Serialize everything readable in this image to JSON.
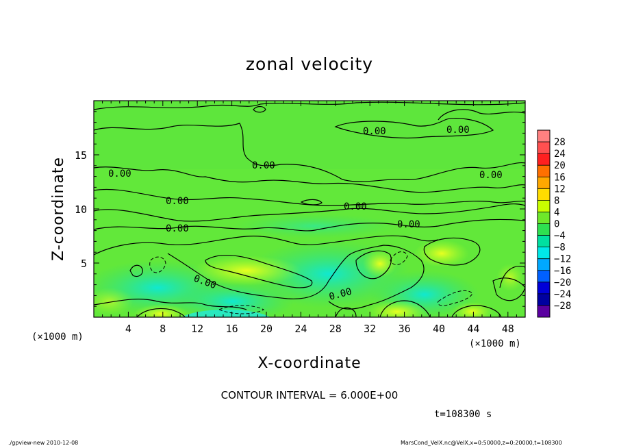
{
  "chart_data": {
    "type": "heatmap",
    "title": "zonal velocity",
    "xlabel": "X-coordinate",
    "ylabel": "Z-coordinate",
    "x_unit": "(×1000 m)",
    "z_unit": "(×1000 m)",
    "xlim": [
      0,
      50
    ],
    "ylim": [
      0,
      20
    ],
    "x_ticks": [
      "4",
      "8",
      "12",
      "16",
      "20",
      "24",
      "28",
      "32",
      "36",
      "40",
      "44",
      "48"
    ],
    "y_ticks": [
      "5",
      "10",
      "15"
    ],
    "colorbar_levels": [
      "28",
      "24",
      "20",
      "16",
      "12",
      "8",
      "4",
      "0",
      "−4",
      "−8",
      "−12",
      "−16",
      "−20",
      "−24",
      "−28"
    ],
    "colorbar_colors": [
      "#ff8080",
      "#ff5050",
      "#ff2020",
      "#ff7000",
      "#ffa800",
      "#ffdd00",
      "#c8ff00",
      "#6ee82a",
      "#2ee050",
      "#00e0a0",
      "#00e8e8",
      "#00a8ff",
      "#0060ff",
      "#0000d8",
      "#0000a0",
      "#5a00a0"
    ],
    "contour_labels": [
      "0.00",
      "0.00",
      "0.00",
      "0.00",
      "0.00",
      "0.00",
      "0.00",
      "0.00",
      "0.00",
      "0.00",
      "0.00"
    ],
    "contour_interval_text": "CONTOUR INTERVAL = 6.000E+00",
    "time_text": "t=108300 s",
    "footer_left": "./gpview-new  2010-12-08",
    "footer_right": "MarsCond_VelX.nc@VelX,x=0:50000,z=0:20000,t=108300"
  }
}
